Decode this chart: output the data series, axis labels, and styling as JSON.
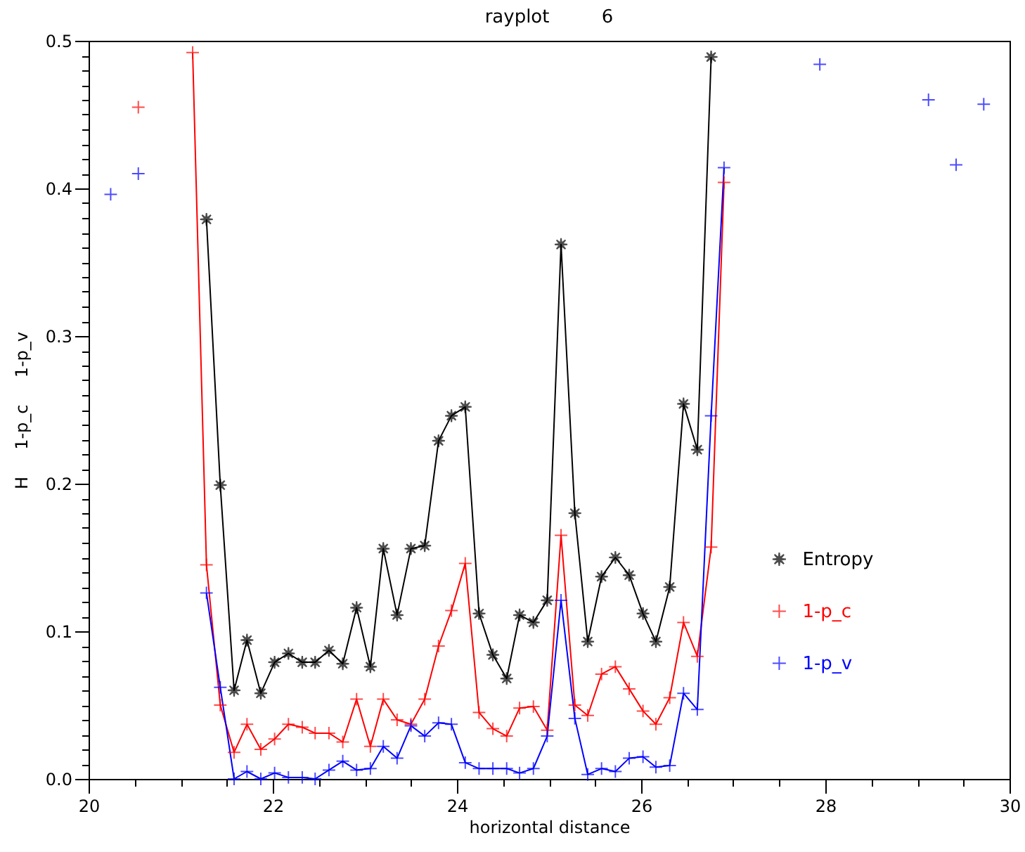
{
  "chart_data": {
    "type": "line",
    "title": "rayplot         6",
    "xlabel": "horizontal distance",
    "ylabel": "H     1-p_c     1-p_v",
    "xlim": [
      20,
      30
    ],
    "ylim": [
      0,
      0.5
    ],
    "xticks": [
      20,
      {
        "value": 20.5,
        "label": null
      },
      {
        "value": 21,
        "label": null
      },
      {
        "value": 21.5,
        "label": null
      },
      22,
      {
        "value": 22.5,
        "label": null
      },
      {
        "value": 23,
        "label": null
      },
      {
        "value": 23.5,
        "label": null
      },
      24,
      {
        "value": 24.5,
        "label": null
      },
      {
        "value": 25,
        "label": null
      },
      {
        "value": 25.5,
        "label": null
      },
      26,
      {
        "value": 26.5,
        "label": null
      },
      {
        "value": 27,
        "label": null
      },
      {
        "value": 27.5,
        "label": null
      },
      28,
      {
        "value": 28.5,
        "label": null
      },
      {
        "value": 29,
        "label": null
      },
      {
        "value": 29.5,
        "label": null
      },
      30
    ],
    "yticks": [
      {
        "value": 0,
        "label": "0.0"
      },
      {
        "value": 0.01,
        "label": null
      },
      {
        "value": 0.02,
        "label": null
      },
      {
        "value": 0.03,
        "label": null
      },
      {
        "value": 0.04,
        "label": null
      },
      {
        "value": 0.05,
        "label": null
      },
      {
        "value": 0.06,
        "label": null
      },
      {
        "value": 0.07,
        "label": null
      },
      {
        "value": 0.08,
        "label": null
      },
      {
        "value": 0.09,
        "label": null
      },
      0.1,
      {
        "value": 0.11,
        "label": null
      },
      {
        "value": 0.12,
        "label": null
      },
      {
        "value": 0.13,
        "label": null
      },
      {
        "value": 0.14,
        "label": null
      },
      {
        "value": 0.15,
        "label": null
      },
      {
        "value": 0.16,
        "label": null
      },
      {
        "value": 0.17,
        "label": null
      },
      {
        "value": 0.18,
        "label": null
      },
      {
        "value": 0.19,
        "label": null
      },
      0.2,
      {
        "value": 0.21,
        "label": null
      },
      {
        "value": 0.22,
        "label": null
      },
      {
        "value": 0.23,
        "label": null
      },
      {
        "value": 0.24,
        "label": null
      },
      {
        "value": 0.25,
        "label": null
      },
      {
        "value": 0.26,
        "label": null
      },
      {
        "value": 0.27,
        "label": null
      },
      {
        "value": 0.28,
        "label": null
      },
      {
        "value": 0.29,
        "label": null
      },
      0.3,
      {
        "value": 0.31,
        "label": null
      },
      {
        "value": 0.32,
        "label": null
      },
      {
        "value": 0.33,
        "label": null
      },
      {
        "value": 0.34,
        "label": null
      },
      {
        "value": 0.35,
        "label": null
      },
      {
        "value": 0.36,
        "label": null
      },
      {
        "value": 0.37,
        "label": null
      },
      {
        "value": 0.38,
        "label": null
      },
      {
        "value": 0.39,
        "label": null
      },
      0.4,
      {
        "value": 0.41,
        "label": null
      },
      {
        "value": 0.42,
        "label": null
      },
      {
        "value": 0.43,
        "label": null
      },
      {
        "value": 0.44,
        "label": null
      },
      {
        "value": 0.45,
        "label": null
      },
      {
        "value": 0.46,
        "label": null
      },
      {
        "value": 0.47,
        "label": null
      },
      {
        "value": 0.48,
        "label": null
      },
      {
        "value": 0.49,
        "label": null
      },
      0.5
    ],
    "legend": "right",
    "line_style": "solid",
    "grid": false,
    "series": [
      {
        "name": "Entropy",
        "color": "#000000",
        "marker": "star",
        "x": [
          21.28,
          21.43,
          21.58,
          21.72,
          21.87,
          22.02,
          22.17,
          22.32,
          22.46,
          22.61,
          22.76,
          22.91,
          23.06,
          23.2,
          23.35,
          23.5,
          23.65,
          23.8,
          23.94,
          24.09,
          24.24,
          24.39,
          24.54,
          24.68,
          24.83,
          24.98,
          25.13,
          25.28,
          25.42,
          25.57,
          25.72,
          25.87,
          26.02,
          26.16,
          26.31,
          26.46,
          26.61,
          26.76
        ],
        "values": [
          0.379,
          0.199,
          0.06,
          0.094,
          0.058,
          0.079,
          0.085,
          0.079,
          0.079,
          0.087,
          0.078,
          0.116,
          0.076,
          0.156,
          0.111,
          0.156,
          0.158,
          0.229,
          0.246,
          0.252,
          0.112,
          0.084,
          0.068,
          0.111,
          0.106,
          0.121,
          0.362,
          0.18,
          0.093,
          0.137,
          0.15,
          0.138,
          0.112,
          0.093,
          0.13,
          0.254,
          0.223,
          0.489
        ]
      },
      {
        "name": "1-p_c",
        "color": "#ff0000",
        "marker": "cross",
        "x": [
          20.54,
          20.84,
          21.13,
          21.28,
          21.43,
          21.58,
          21.72,
          21.87,
          22.02,
          22.17,
          22.32,
          22.46,
          22.61,
          22.76,
          22.91,
          23.06,
          23.2,
          23.35,
          23.5,
          23.65,
          23.8,
          23.94,
          24.09,
          24.24,
          24.39,
          24.54,
          24.68,
          24.83,
          24.98,
          25.13,
          25.28,
          25.42,
          25.57,
          25.72,
          25.87,
          26.02,
          26.16,
          26.31,
          26.46,
          26.61,
          26.76,
          26.9
        ],
        "values": [
          0.455,
          null,
          0.492,
          0.145,
          0.05,
          0.018,
          0.037,
          0.02,
          0.027,
          0.037,
          0.035,
          0.031,
          0.031,
          0.025,
          0.054,
          0.022,
          0.054,
          0.04,
          0.037,
          0.054,
          0.09,
          0.114,
          0.146,
          0.045,
          0.034,
          0.029,
          0.048,
          0.049,
          0.033,
          0.165,
          0.05,
          0.043,
          0.071,
          0.076,
          0.061,
          0.046,
          0.037,
          0.055,
          0.106,
          0.083,
          0.157,
          0.404
        ]
      },
      {
        "name": "1-p_v",
        "color": "#0000ff",
        "marker": "cross",
        "x": [
          20.24,
          20.39,
          20.54,
          20.84,
          21.28,
          21.43,
          21.58,
          21.72,
          21.87,
          22.02,
          22.17,
          22.32,
          22.46,
          22.61,
          22.76,
          22.91,
          23.06,
          23.2,
          23.35,
          23.5,
          23.65,
          23.8,
          23.94,
          24.09,
          24.24,
          24.39,
          24.54,
          24.68,
          24.83,
          24.98,
          25.13,
          25.28,
          25.42,
          25.57,
          25.72,
          25.87,
          26.02,
          26.16,
          26.31,
          26.46,
          26.61,
          26.76,
          26.9,
          27.5,
          27.94,
          28.5,
          29.12,
          29.27,
          29.42,
          29.57,
          29.72
        ],
        "values": [
          0.396,
          null,
          0.41,
          null,
          0.126,
          0.062,
          0,
          0.005,
          0,
          0.004,
          0.001,
          0.001,
          0,
          0.006,
          0.012,
          0.006,
          0.007,
          0.022,
          0.014,
          0.036,
          0.029,
          0.038,
          0.037,
          0.011,
          0.007,
          0.007,
          0.007,
          0.004,
          0.007,
          0.029,
          0.121,
          0.041,
          0.003,
          0.007,
          0.005,
          0.014,
          0.015,
          0.008,
          0.009,
          0.058,
          0.047,
          0.246,
          0.414,
          null,
          0.484,
          null,
          0.46,
          null,
          0.416,
          null,
          0.457
        ]
      }
    ]
  }
}
